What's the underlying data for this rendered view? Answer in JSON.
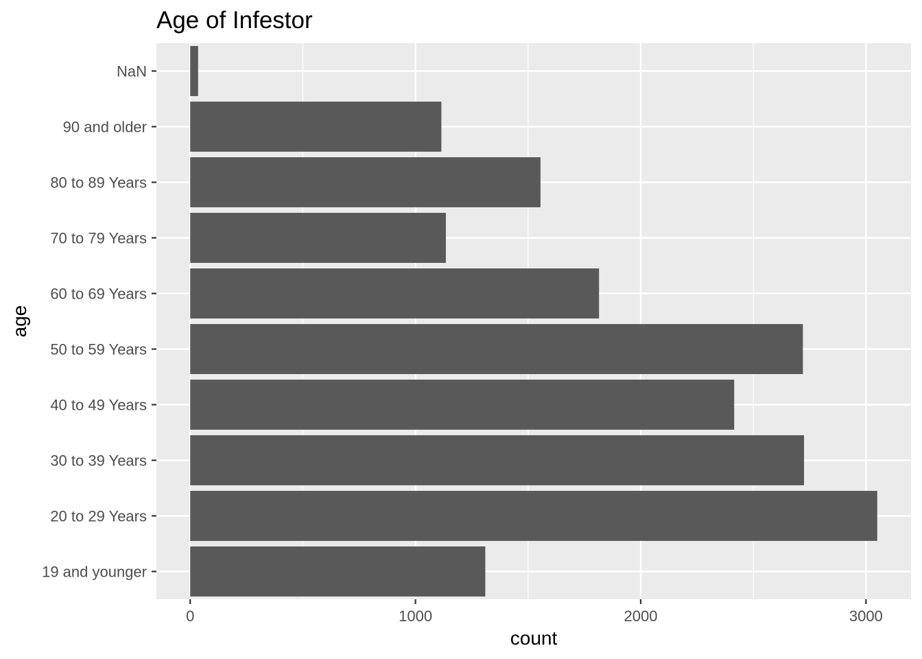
{
  "chart_data": {
    "type": "bar",
    "orientation": "horizontal",
    "title": "Age of Infestor",
    "xlabel": "count",
    "ylabel": "age",
    "categories": [
      "19 and younger",
      "20 to 29 Years",
      "30 to 39 Years",
      "40 to 49 Years",
      "50 to 59 Years",
      "60 to 69 Years",
      "70 to 79 Years",
      "80 to 89 Years",
      "90 and older",
      "NaN"
    ],
    "values": [
      1310,
      3050,
      2725,
      2415,
      2720,
      1815,
      1135,
      1555,
      1115,
      35
    ],
    "xlim": [
      -150,
      3200
    ],
    "xticks": [
      0,
      1000,
      2000,
      3000
    ],
    "xtick_labels": [
      "0",
      "1000",
      "2000",
      "3000"
    ],
    "grid": true,
    "colors": {
      "bar": "#595959",
      "panel": "#ebebeb",
      "grid": "#ffffff",
      "tick_text": "#4d4d4d",
      "tick_mark": "#333333"
    }
  }
}
